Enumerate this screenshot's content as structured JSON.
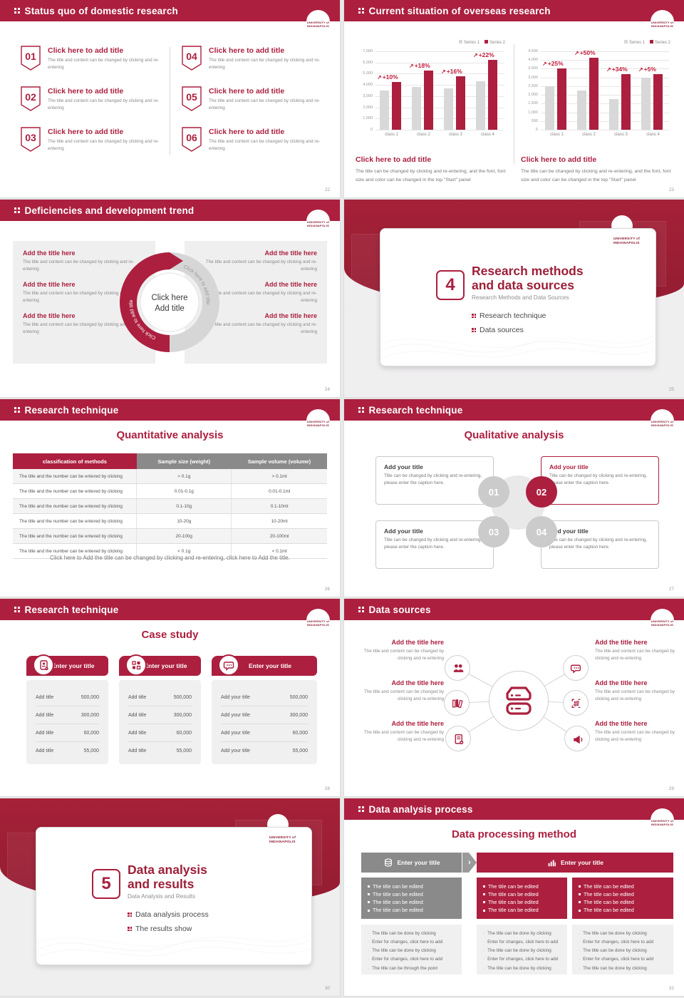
{
  "theme": {
    "primary": "#AC1F3F",
    "primary_dark": "#93192F",
    "accent_red": "#C01D3C",
    "gray_bar": "#D8D8D8",
    "gray_header": "#8A8A8A",
    "panel_gray": "#F0F0F0",
    "page_bg": "#E8E8E8"
  },
  "logo": {
    "line1": "UNIVERSITY of",
    "line2": "INDIANAPOLIS"
  },
  "chart_data": [
    {
      "type": "bar",
      "title": "",
      "categories": [
        "class 1",
        "class 2",
        "class 3",
        "class 4"
      ],
      "series": [
        {
          "name": "Series 1",
          "color": "#D8D8D8",
          "values": [
            3500,
            3850,
            3700,
            4350
          ]
        },
        {
          "name": "Series 2",
          "color": "#AC1F3F",
          "values": [
            4250,
            5300,
            4800,
            6250
          ]
        }
      ],
      "annotations": [
        "+10%",
        "+18%",
        "+16%",
        "+22%"
      ],
      "xlabel": "",
      "ylabel": "",
      "ylim": [
        0,
        7000
      ],
      "yticks": [
        0,
        1000,
        2000,
        3000,
        4000,
        5000,
        6000,
        7000
      ],
      "grid": true,
      "legend_position": "top-right"
    },
    {
      "type": "bar",
      "title": "",
      "categories": [
        "class 1",
        "class 2",
        "class 3",
        "class 4"
      ],
      "series": [
        {
          "name": "Series 1",
          "color": "#D8D8D8",
          "values": [
            2500,
            2250,
            1750,
            3000
          ]
        },
        {
          "name": "Series 2",
          "color": "#AC1F3F",
          "values": [
            3500,
            4150,
            3200,
            3200
          ]
        }
      ],
      "annotations": [
        "+25%",
        "+50%",
        "+34%",
        "+5%"
      ],
      "xlabel": "",
      "ylabel": "",
      "ylim": [
        0,
        4500
      ],
      "yticks": [
        0,
        500,
        1000,
        1500,
        2000,
        2500,
        3000,
        3500,
        4000,
        4500
      ],
      "grid": true,
      "legend_position": "top-right"
    }
  ],
  "s22": {
    "header": "Status quo of domestic research",
    "page": "22",
    "items": [
      {
        "num": "01",
        "title": "Click here to add title",
        "body": "The title and content can be changed by clicking and re-entering"
      },
      {
        "num": "02",
        "title": "Click here to add title",
        "body": "The title and content can be changed by clicking and re-entering"
      },
      {
        "num": "03",
        "title": "Click here to add title",
        "body": "The title and content can be changed by clicking and re-entering"
      },
      {
        "num": "04",
        "title": "Click here to add title",
        "body": "The title and content can be changed by clicking and re-entering"
      },
      {
        "num": "05",
        "title": "Click here to add title",
        "body": "The title and content can be changed by clicking and re-entering"
      },
      {
        "num": "06",
        "title": "Click here to add title",
        "body": "The title and content can be changed by clicking and re-entering"
      }
    ]
  },
  "s23": {
    "header": "Current situation of overseas research",
    "page": "23",
    "blocks": [
      {
        "title": "Click here to add title",
        "body": "The title can be changed by clicking and re-entering, and the font, font size and color can be changed in the top \"Start\" panel"
      },
      {
        "title": "Click here to add title",
        "body": "The title can be changed by clicking and re-entering, and the font, font size and color can be changed in the top \"Start\" panel"
      }
    ]
  },
  "s24": {
    "header": "Deficiencies and development trend",
    "page": "24",
    "arrow_label_left": "Click here to add title",
    "arrow_label_right": "Click here to add title",
    "center": {
      "line1": "Click here",
      "line2": "Add title"
    },
    "left_items": [
      {
        "title": "Add the title here",
        "body": "The title and content can be changed by clicking and re-entering"
      },
      {
        "title": "Add the title here",
        "body": "The title and content can be changed by clicking and re-entering"
      },
      {
        "title": "Add the title here",
        "body": "The title and content can be changed by clicking and re-entering"
      }
    ],
    "right_items": [
      {
        "title": "Add the title here",
        "body": "The title and content can be changed by clicking and re-entering"
      },
      {
        "title": "Add the title here",
        "body": "The title and content can be changed by clicking and re-entering"
      },
      {
        "title": "Add the title here",
        "body": "The title and content can be changed by clicking and re-entering"
      }
    ]
  },
  "s25": {
    "number": "4",
    "title_line1": "Research methods",
    "title_line2": "and data sources",
    "subtitle": "Research Methods and Data Sources",
    "bullets": [
      "Research technique",
      "Data sources"
    ],
    "page": "25"
  },
  "s26": {
    "header": "Research technique",
    "page": "26",
    "subtitle": "Quantitative analysis",
    "table": {
      "headers": [
        "classification of methods",
        "Sample size (weight)",
        "Sample volume (volume)"
      ],
      "rows": [
        [
          "The title and the number can be entered by clicking",
          "> 0.1g",
          "> 0.1ml"
        ],
        [
          "The title and the number can be entered by clicking",
          "0.01-0.1g",
          "0.01-0.1ml"
        ],
        [
          "The title and the number can be entered by clicking",
          "0.1-10g",
          "0.1-10ml"
        ],
        [
          "The title and the number can be entered by clicking",
          "10-20g",
          "10-20ml"
        ],
        [
          "The title and the number can be entered by clicking",
          "20-100g",
          "20-100ml"
        ],
        [
          "The title and the number can be entered by clicking",
          "< 0.1g",
          "< 0.1ml"
        ]
      ]
    },
    "caption": "Click here to Add the title can be changed by clicking and re-entering, click here to Add the title."
  },
  "s27": {
    "header": "Research technique",
    "page": "27",
    "subtitle": "Qualitative analysis",
    "boxes": [
      {
        "num": "01",
        "active": false,
        "title": "Add your title",
        "body": "Title can be changed by clicking and re-entering, please enter the caption here."
      },
      {
        "num": "02",
        "active": true,
        "title": "Add your title",
        "body": "Title can be changed by clicking and re-entering, please enter the caption here."
      },
      {
        "num": "03",
        "active": false,
        "title": "Add your title",
        "body": "Title can be changed by clicking and re-entering, please enter the caption here."
      },
      {
        "num": "04",
        "active": false,
        "title": "Add your title",
        "body": "Title can be changed by clicking and re-entering, please enter the caption here."
      }
    ]
  },
  "s28": {
    "header": "Research technique",
    "page": "28",
    "subtitle": "Case study",
    "cards": [
      {
        "icon": "id-card-icon",
        "title": "Enter your title",
        "rows": [
          {
            "label": "Add title",
            "value": "500,000"
          },
          {
            "label": "Add title",
            "value": "300,000"
          },
          {
            "label": "Add title",
            "value": "60,000"
          },
          {
            "label": "Add title",
            "value": "55,000"
          }
        ]
      },
      {
        "icon": "qr-code-icon",
        "title": "Enter your title",
        "rows": [
          {
            "label": "Add title",
            "value": "500,000"
          },
          {
            "label": "Add title",
            "value": "300,000"
          },
          {
            "label": "Add title",
            "value": "60,000"
          },
          {
            "label": "Add title",
            "value": "55,000"
          }
        ]
      },
      {
        "icon": "chat-icon",
        "title": "Enter your title",
        "rows": [
          {
            "label": "Add your title",
            "value": "500,000"
          },
          {
            "label": "Add your title",
            "value": "300,000"
          },
          {
            "label": "Add your title",
            "value": "60,000"
          },
          {
            "label": "Add your title",
            "value": "55,000"
          }
        ]
      }
    ]
  },
  "s29": {
    "header": "Data sources",
    "page": "29",
    "center_icon": "database-icon",
    "spokes": [
      {
        "side": "left",
        "icon": "people-icon",
        "title": "Add the title here",
        "body": "The title and content can be changed by clicking and re-entering"
      },
      {
        "side": "left",
        "icon": "books-icon",
        "title": "Add the title here",
        "body": "The title and content can be changed by clicking and re-entering"
      },
      {
        "side": "left",
        "icon": "document-add-icon",
        "title": "Add the title here",
        "body": "The title and content can be changed by clicking and re-entering"
      },
      {
        "side": "right",
        "icon": "chat-bubbles-icon",
        "title": "Add the title here",
        "body": "The title and content can be changed by clicking and re-entering"
      },
      {
        "side": "right",
        "icon": "qr-scan-icon",
        "title": "Add the title here",
        "body": "The title and content can be changed by clicking and re-entering"
      },
      {
        "side": "right",
        "icon": "megaphone-icon",
        "title": "Add the title here",
        "body": "The title and content can be changed by clicking and re-entering"
      }
    ]
  },
  "s30": {
    "number": "5",
    "title_line1": "Data analysis",
    "title_line2": "and results",
    "subtitle": "Data Analysis and Results",
    "bullets": [
      "Data analysis process",
      "The results show"
    ],
    "page": "30"
  },
  "s31": {
    "header": "Data analysis process",
    "page": "31",
    "subtitle": "Data processing method",
    "flow_headers": [
      {
        "label": "Enter your title",
        "icon": "database-icon",
        "variant": "gray"
      },
      {
        "label": "Enter your title",
        "icon": "bar-chart-icon",
        "variant": "red"
      }
    ],
    "edit_boxes": [
      {
        "variant": "gray",
        "items": [
          "The title can be edited",
          "The title can be edited",
          "The title can be edited",
          "The title can be edited"
        ]
      },
      {
        "variant": "red",
        "items": [
          "The title can be edited",
          "The title can be edited",
          "The title can be edited",
          "The title can be edited"
        ]
      },
      {
        "variant": "red",
        "items": [
          "The title can be edited",
          "The title can be edited",
          "The title can be edited",
          "The title can be edited"
        ]
      }
    ],
    "note_boxes": [
      {
        "items": [
          "The title can be done by clicking",
          "Enter for changes, click here to add",
          "The title can be done by clicking",
          "Enter for changes, click here to add",
          "The title can be through the point"
        ]
      },
      {
        "items": [
          "The title can be done by clicking",
          "Enter for changes, click here to add",
          "The title can be done by clicking",
          "Enter for changes, click here to add",
          "The title can be done by clicking"
        ]
      },
      {
        "items": [
          "The title can be done by clicking",
          "Enter for changes, click here to add",
          "The title can be done by clicking",
          "Enter for changes, click here to add",
          "The title can be done by clicking"
        ]
      }
    ]
  }
}
